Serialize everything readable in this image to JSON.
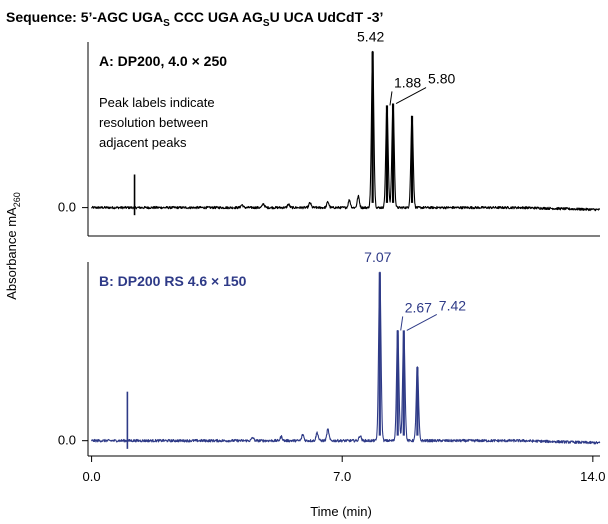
{
  "sequence": {
    "prefix": "Sequence: 5’-AGC UGA",
    "s1": "S",
    "mid": " CCC UGA AG",
    "s2": "S",
    "suffix": "U UCA UdCdT -3’"
  },
  "chart_data": [
    {
      "type": "line",
      "title": "A: DP200, 4.0 × 250",
      "color": "#000000",
      "annotation": [
        "Peak labels indicate",
        "resolution between",
        "adjacent peaks"
      ],
      "ylabel": "Absorbance mA",
      "ylabel_sub": "260",
      "yticks": [
        {
          "value": 0.0,
          "label": "0.0"
        }
      ],
      "ylim": [
        -0.3,
        1.75
      ],
      "xlim": [
        -0.1,
        14.2
      ],
      "injection": {
        "x": 1.2,
        "height": 0.35
      },
      "peaks": [
        {
          "x": 7.85,
          "height": 1.65
        },
        {
          "x": 8.25,
          "height": 1.08
        },
        {
          "x": 8.42,
          "height": 1.1
        },
        {
          "x": 8.95,
          "height": 0.97
        }
      ],
      "minor_peaks": [
        {
          "x": 4.2,
          "height": 0.03
        },
        {
          "x": 4.8,
          "height": 0.04
        },
        {
          "x": 5.5,
          "height": 0.035
        },
        {
          "x": 6.1,
          "height": 0.05
        },
        {
          "x": 6.6,
          "height": 0.06
        },
        {
          "x": 7.2,
          "height": 0.08
        },
        {
          "x": 7.45,
          "height": 0.12
        }
      ],
      "resolution_labels": [
        {
          "text": "5.42",
          "between": [
            7.85,
            8.25
          ]
        },
        {
          "text": "1.88",
          "between": [
            8.25,
            8.42
          ]
        },
        {
          "text": "5.80",
          "between": [
            8.42,
            8.95
          ]
        }
      ]
    },
    {
      "type": "line",
      "title": "B: DP200 RS 4.6 × 150",
      "color": "#2e3a87",
      "yticks": [
        {
          "value": 0.0,
          "label": "0.0"
        }
      ],
      "ylim": [
        -0.15,
        1.75
      ],
      "xlim": [
        -0.1,
        14.2
      ],
      "injection": {
        "x": 1.0,
        "height": 0.48
      },
      "peaks": [
        {
          "x": 8.05,
          "height": 1.65
        },
        {
          "x": 8.55,
          "height": 1.08
        },
        {
          "x": 8.72,
          "height": 1.08
        },
        {
          "x": 9.1,
          "height": 0.72
        }
      ],
      "minor_peaks": [
        {
          "x": 4.5,
          "height": 0.03
        },
        {
          "x": 5.3,
          "height": 0.04
        },
        {
          "x": 5.9,
          "height": 0.06
        },
        {
          "x": 6.3,
          "height": 0.08
        },
        {
          "x": 6.6,
          "height": 0.11
        },
        {
          "x": 7.5,
          "height": 0.05
        }
      ],
      "resolution_labels": [
        {
          "text": "7.07",
          "between": [
            8.05,
            8.55
          ]
        },
        {
          "text": "2.67",
          "between": [
            8.55,
            8.72
          ]
        },
        {
          "text": "7.42",
          "between": [
            8.72,
            9.1
          ]
        }
      ],
      "xlabel": "Time (min)",
      "xticks": [
        {
          "value": 0.0,
          "label": "0.0"
        },
        {
          "value": 7.0,
          "label": "7.0"
        },
        {
          "value": 14.0,
          "label": "14.0"
        }
      ]
    }
  ]
}
